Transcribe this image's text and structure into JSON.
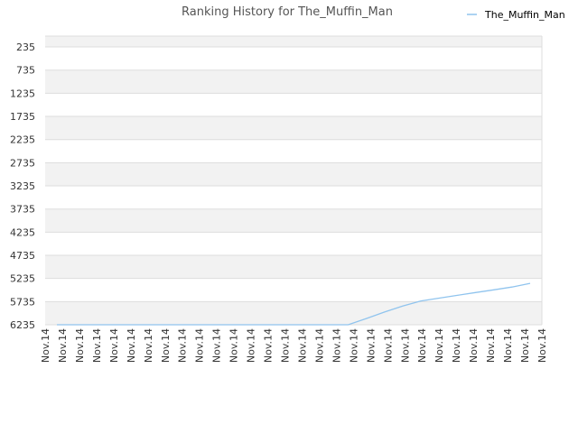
{
  "chart_data": {
    "type": "line",
    "title": "Ranking History for The_Muffin_Man",
    "xlabel": "",
    "ylabel": "",
    "y_inverted": true,
    "ylim": [
      0,
      6235
    ],
    "y_ticks": [
      235,
      735,
      1235,
      1735,
      2235,
      2735,
      3235,
      3735,
      4235,
      4735,
      5235,
      5735,
      6235
    ],
    "x_ticks": [
      "Nov.14",
      "Nov.14",
      "Nov.14",
      "Nov.14",
      "Nov.14",
      "Nov.14",
      "Nov.14",
      "Nov.14",
      "Nov.14",
      "Nov.14",
      "Nov.14",
      "Nov.14",
      "Nov.14",
      "Nov.14",
      "Nov.14",
      "Nov.14",
      "Nov.14",
      "Nov.14",
      "Nov.14",
      "Nov.14",
      "Nov.14",
      "Nov.14",
      "Nov.14",
      "Nov.14",
      "Nov.14",
      "Nov.14",
      "Nov.14",
      "Nov.14",
      "Nov.14",
      "Nov.14"
    ],
    "grid": true,
    "band_colors": [
      "#f2f2f2",
      "#ffffff"
    ],
    "legend_position": "top-right",
    "series": [
      {
        "name": "The_Muffin_Man",
        "color": "#90c4ee",
        "values": [
          6235,
          6235,
          6235,
          6235,
          6235,
          6235,
          6235,
          6235,
          6235,
          6235,
          6235,
          6235,
          6235,
          6235,
          6235,
          6235,
          6235,
          6100,
          5960,
          5830,
          5720,
          5660,
          5600,
          5540,
          5480,
          5420,
          5340
        ]
      }
    ]
  }
}
